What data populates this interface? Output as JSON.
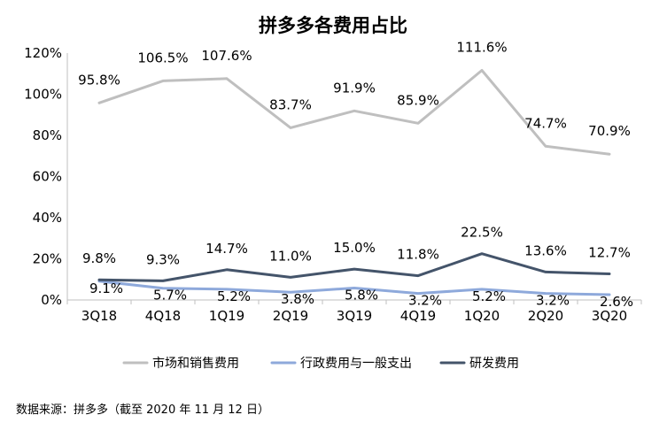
{
  "chart_data": {
    "type": "line",
    "title": "拼多多各费用占比",
    "categories": [
      "3Q18",
      "4Q18",
      "1Q19",
      "2Q19",
      "3Q19",
      "4Q19",
      "1Q20",
      "2Q20",
      "3Q20"
    ],
    "ylim": [
      0,
      120
    ],
    "yticks": [
      "0%",
      "20%",
      "40%",
      "60%",
      "80%",
      "100%",
      "120%"
    ],
    "grid": false,
    "legend_position": "bottom",
    "series": [
      {
        "name": "市场和销售费用",
        "color": "#BFBFBF",
        "values": [
          95.8,
          106.5,
          107.6,
          83.7,
          91.9,
          85.9,
          111.6,
          74.7,
          70.9
        ],
        "labels": [
          "95.8%",
          "106.5%",
          "107.6%",
          "83.7%",
          "91.9%",
          "85.9%",
          "111.6%",
          "74.7%",
          "70.9%"
        ]
      },
      {
        "name": "行政费用与一般支出",
        "color": "#8EA9DB",
        "values": [
          9.1,
          5.7,
          5.2,
          3.8,
          5.8,
          3.2,
          5.2,
          3.2,
          2.6
        ],
        "labels": [
          "9.1%",
          "5.7%",
          "5.2%",
          "3.8%",
          "5.8%",
          "3.2%",
          "5.2%",
          "3.2%",
          "2.6%"
        ]
      },
      {
        "name": "研发费用",
        "color": "#44546A",
        "values": [
          9.8,
          9.3,
          14.7,
          11.0,
          15.0,
          11.8,
          22.5,
          13.6,
          12.7
        ],
        "labels": [
          "9.8%",
          "9.3%",
          "14.7%",
          "11.0%",
          "15.0%",
          "11.8%",
          "22.5%",
          "13.6%",
          "12.7%"
        ]
      }
    ]
  },
  "source_note": "数据来源：拼多多（截至 2020 年 11 月 12 日）"
}
